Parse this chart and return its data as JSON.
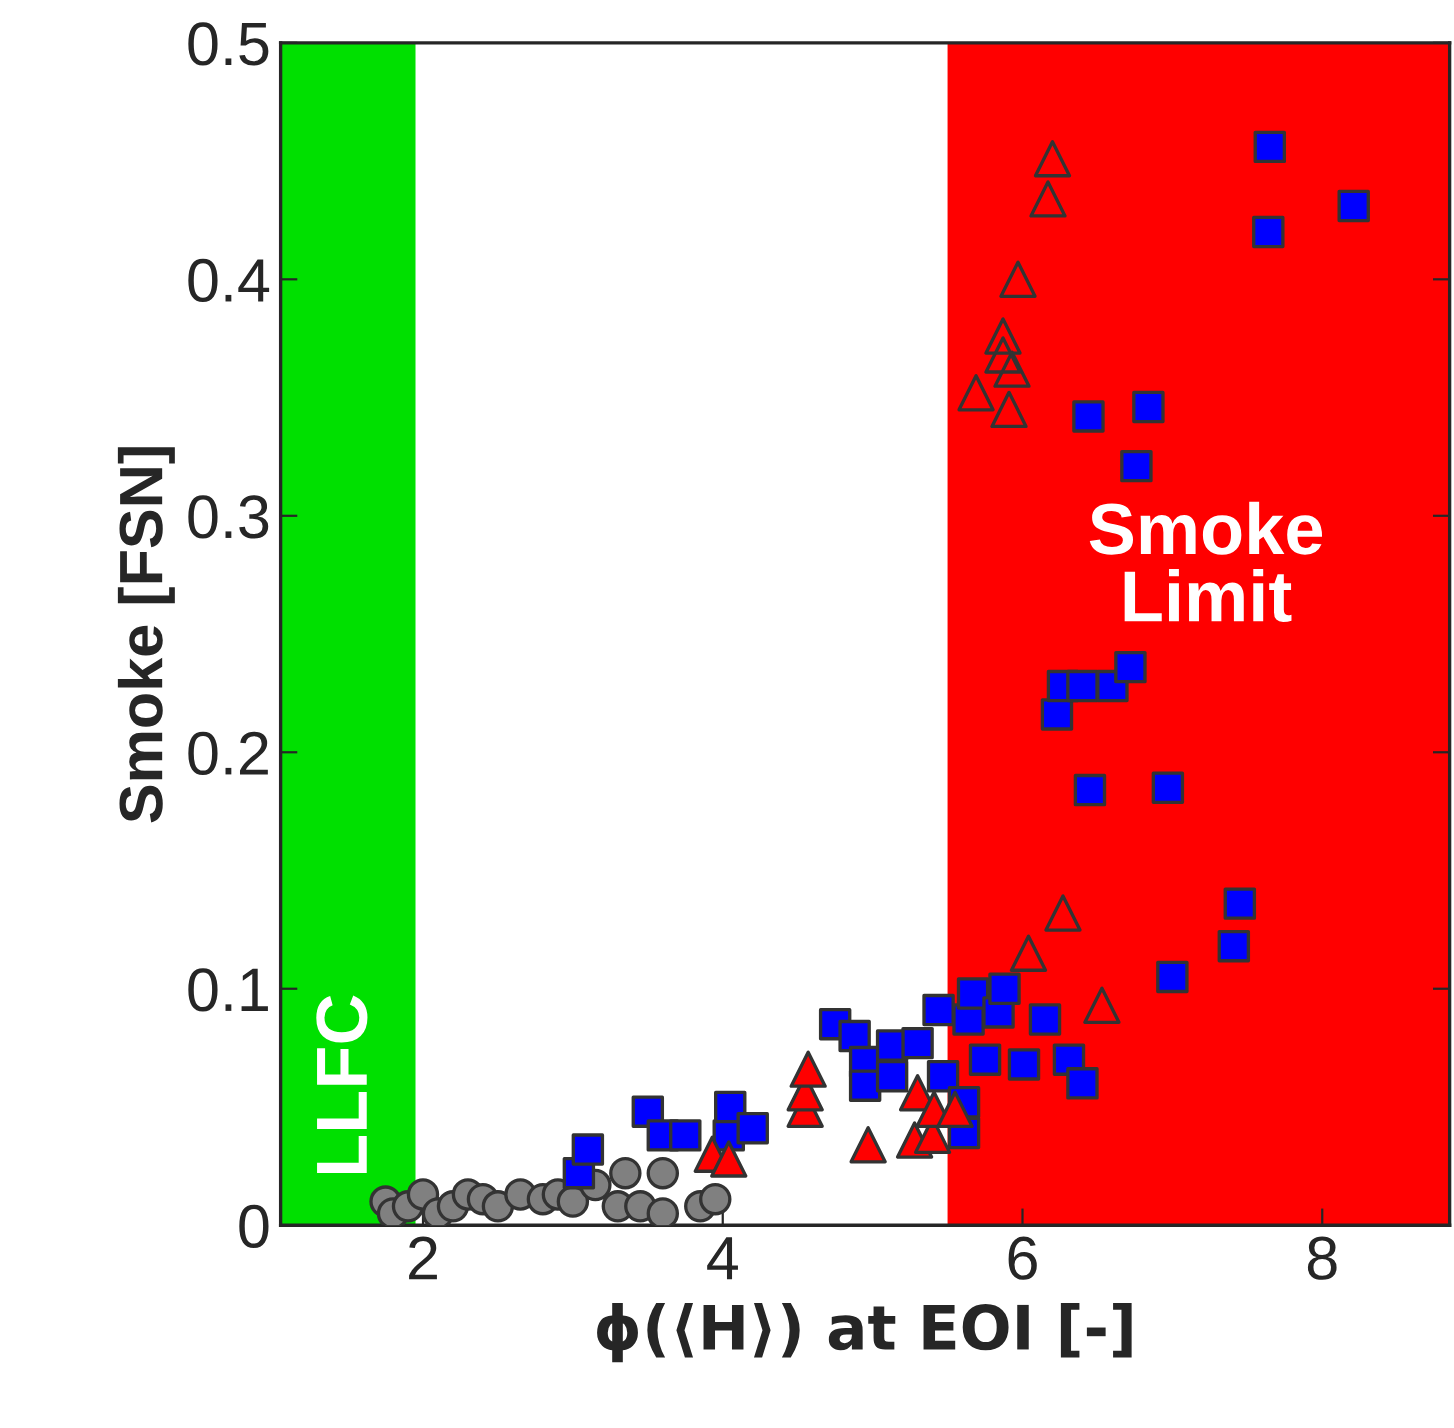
{
  "chart_data": {
    "type": "scatter",
    "xlabel": "ϕ(⟨H⟩) at EOI [-]",
    "ylabel": "Smoke [FSN]",
    "xlim": [
      1.05,
      8.85
    ],
    "ylim": [
      0,
      0.5
    ],
    "xticks": [
      2,
      4,
      6,
      8
    ],
    "yticks": [
      0,
      0.1,
      0.2,
      0.3,
      0.4,
      0.5
    ],
    "grid": false,
    "legend": false,
    "bands": [
      {
        "axis": "x",
        "from": 1.05,
        "to": 1.95,
        "label": "LLFC",
        "color": "#00e000"
      },
      {
        "axis": "x",
        "from": 5.5,
        "to": 8.85,
        "label": "Smoke\nLimit",
        "color": "#ff0000"
      }
    ],
    "series": [
      {
        "color": "#808080",
        "marker": "circle",
        "x": [
          1.75,
          1.8,
          1.9,
          2.0,
          2.1,
          2.2,
          2.3,
          2.4,
          2.5,
          2.65,
          2.8,
          2.9,
          3.0,
          3.15,
          3.3,
          3.35,
          3.45,
          3.6,
          3.6,
          3.85,
          3.95
        ],
        "values": [
          0.01,
          0.005,
          0.008,
          0.013,
          0.005,
          0.008,
          0.013,
          0.011,
          0.008,
          0.013,
          0.011,
          0.013,
          0.01,
          0.017,
          0.008,
          0.022,
          0.008,
          0.022,
          0.005,
          0.008,
          0.011
        ]
      },
      {
        "color": "#0000ff",
        "marker": "square",
        "x": [
          3.04,
          3.1,
          3.5,
          3.6,
          3.75,
          4.04,
          4.05,
          4.2,
          4.75,
          4.88,
          4.95,
          4.95,
          5.13,
          5.13,
          5.3,
          5.31,
          5.44,
          5.47,
          5.61,
          5.61,
          5.64,
          5.67,
          5.75,
          5.84,
          5.88,
          5.93,
          6.01,
          6.15,
          6.31,
          6.4,
          7.0,
          7.41,
          7.45,
          6.45,
          6.97,
          6.23,
          6.27,
          6.4,
          6.6,
          6.72,
          6.76,
          6.44,
          6.84,
          7.64,
          7.65,
          8.21
        ],
        "values": [
          0.022,
          0.032,
          0.048,
          0.038,
          0.038,
          0.038,
          0.05,
          0.041,
          0.085,
          0.08,
          0.069,
          0.059,
          0.076,
          0.063,
          0.077,
          null,
          0.091,
          0.063,
          0.052,
          0.039,
          0.087,
          0.098,
          0.07,
          0.09,
          0.1,
          null,
          0.068,
          0.087,
          0.07,
          0.06,
          0.105,
          0.118,
          0.136,
          0.184,
          0.185,
          0.216,
          0.228,
          0.228,
          0.228,
          0.236,
          0.321,
          0.342,
          0.346,
          0.42,
          0.456,
          0.431
        ]
      },
      {
        "color": "#ff0000",
        "marker": "triangle",
        "x": [
          3.93,
          4.04,
          4.55,
          4.55,
          4.57,
          4.97,
          5.28,
          5.3,
          5.4,
          5.41,
          5.55
        ],
        "values": [
          0.03,
          0.028,
          0.049,
          0.056,
          0.066,
          0.034,
          0.036,
          0.056,
          0.038,
          0.049,
          0.049
        ]
      },
      {
        "color": null,
        "marker": "triangle",
        "x": [
          6.04,
          6.53,
          6.27,
          5.69,
          5.91,
          5.93,
          5.87,
          5.87,
          5.97,
          6.17,
          6.2
        ],
        "values": [
          0.115,
          0.093,
          0.132,
          0.352,
          0.345,
          0.362,
          0.368,
          0.376,
          0.4,
          0.434,
          0.451
        ]
      }
    ]
  }
}
